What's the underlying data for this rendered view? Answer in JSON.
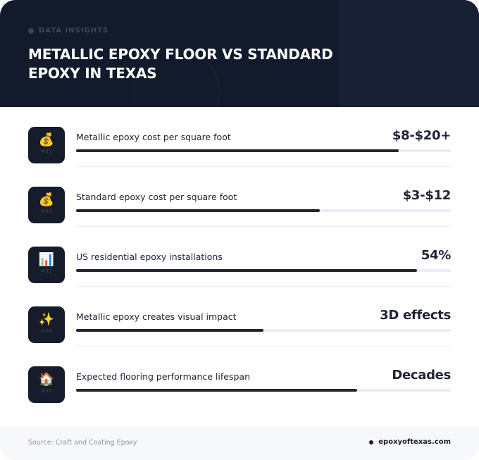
{
  "header": {
    "eyebrow": "DATA INSIGHTS",
    "title": "METALLIC EPOXY FLOOR VS STANDARD EPOXY IN TEXAS"
  },
  "rows": [
    {
      "icon": "money-bag-icon",
      "glyph": "💰",
      "num": "#01",
      "label": "Metallic epoxy cost per square foot",
      "value": "$8-$20+",
      "bar_fraction": 0.86
    },
    {
      "icon": "money-bag-icon",
      "glyph": "💰",
      "num": "#02",
      "label": "Standard epoxy cost per square foot",
      "value": "$3-$12",
      "bar_fraction": 0.65
    },
    {
      "icon": "bar-chart-icon",
      "glyph": "📊",
      "num": "#03",
      "label": "US residential epoxy installations",
      "value": "54%",
      "bar_fraction": 0.91
    },
    {
      "icon": "sparkles-icon",
      "glyph": "✨",
      "num": "#04",
      "label": "Metallic epoxy creates visual impact",
      "value": "3D effects",
      "bar_fraction": 0.5
    },
    {
      "icon": "house-icon",
      "glyph": "🏠",
      "num": "#05",
      "label": "Expected flooring performance lifespan",
      "value": "Decades",
      "bar_fraction": 0.75
    }
  ],
  "footer": {
    "source": "Source: Craft and Coating Epoxy",
    "site": "epoxyoftexas.com"
  }
}
